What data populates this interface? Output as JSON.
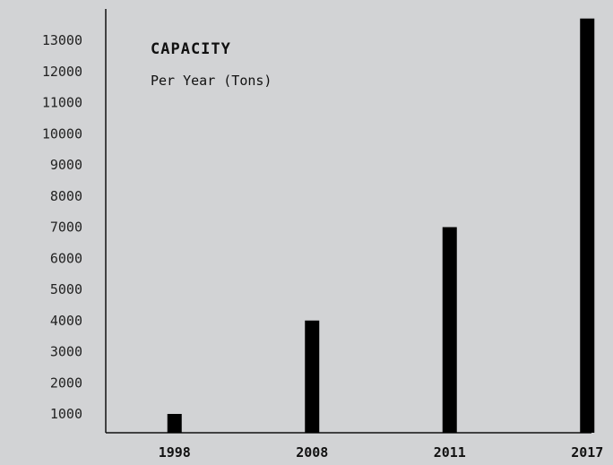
{
  "chart_data": {
    "type": "bar",
    "title": "CAPACITY",
    "subtitle": "Per Year (Tons)",
    "categories": [
      "1998",
      "2008",
      "2011",
      "2017"
    ],
    "values": [
      1000,
      4000,
      7000,
      13700
    ],
    "yticks": [
      1000,
      2000,
      3000,
      4000,
      5000,
      6000,
      7000,
      8000,
      9000,
      10000,
      11000,
      12000,
      13000
    ],
    "ylim": [
      700,
      13900
    ],
    "xlabel": "",
    "ylabel": "",
    "grid": false,
    "colors": {
      "bar": "#000000",
      "axis": "#111111",
      "background": "#d2d3d5"
    }
  }
}
